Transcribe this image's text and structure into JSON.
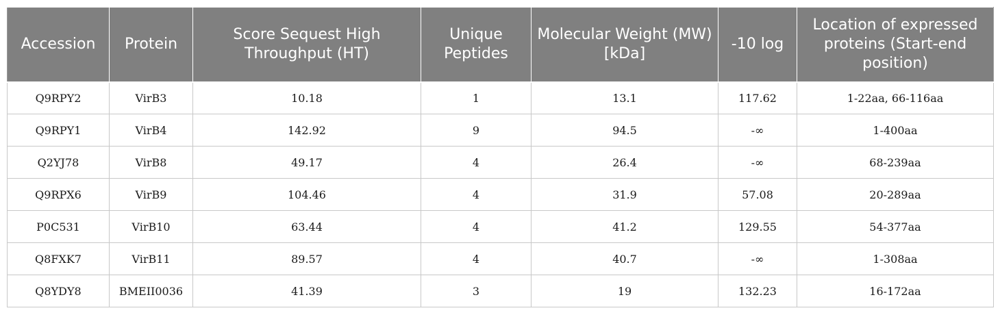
{
  "table": {
    "headers": [
      "Accession",
      "Protein",
      "Score Sequest High Throughput (HT)",
      "Unique Peptides",
      "Molecular Weight (MW) [kDa]",
      "-10 log",
      "Location of expressed proteins (Start-end position)"
    ],
    "rows": [
      [
        "Q9RPY2",
        "VirB3",
        "10.18",
        "1",
        "13.1",
        "117.62",
        "1-22aa, 66-116aa"
      ],
      [
        "Q9RPY1",
        "VirB4",
        "142.92",
        "9",
        "94.5",
        "-∞",
        "1-400aa"
      ],
      [
        "Q2YJ78",
        "VirB8",
        "49.17",
        "4",
        "26.4",
        "-∞",
        "68-239aa"
      ],
      [
        "Q9RPX6",
        "VirB9",
        "104.46",
        "4",
        "31.9",
        "57.08",
        "20-289aa"
      ],
      [
        "P0C531",
        "VirB10",
        "63.44",
        "4",
        "41.2",
        "129.55",
        "54-377aa"
      ],
      [
        "Q8FXK7",
        "VirB11",
        "89.57",
        "4",
        "40.7",
        "-∞",
        "1-308aa"
      ],
      [
        "Q8YDY8",
        "BMEII0036",
        "41.39",
        "3",
        "19",
        "132.23",
        "16-172aa"
      ]
    ]
  }
}
